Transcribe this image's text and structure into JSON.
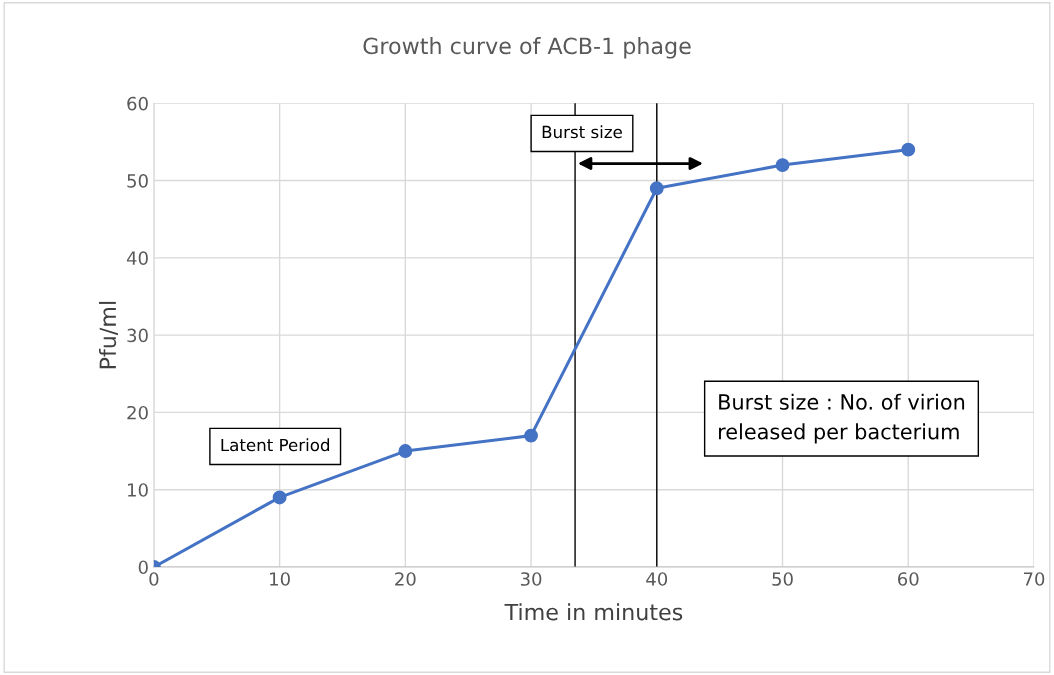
{
  "chart_data": {
    "type": "line",
    "title": "Growth curve of ACB-1 phage",
    "xlabel": "Time in minutes",
    "ylabel": "Pfu/ml",
    "x": [
      0,
      10,
      20,
      30,
      40,
      50,
      60
    ],
    "series": [
      {
        "color": "#4472c4",
        "values": [
          0,
          9,
          15,
          17,
          49,
          52,
          54
        ]
      }
    ],
    "xlim": [
      0,
      70
    ],
    "xticks": [
      0,
      10,
      20,
      30,
      40,
      50,
      60,
      70
    ],
    "ylim": [
      0,
      60
    ],
    "yticks": [
      0,
      10,
      20,
      30,
      40,
      50,
      60
    ],
    "grid": true,
    "marker": "circle",
    "line_style": "solid",
    "ref_lines": [
      {
        "axis": "x",
        "value": 33.5,
        "color": "#000000"
      },
      {
        "axis": "x",
        "value": 40,
        "color": "#000000"
      }
    ],
    "annotations": [
      "Latent Period",
      "Burst size",
      "Burst size : No. of virion released per bacterium"
    ]
  }
}
